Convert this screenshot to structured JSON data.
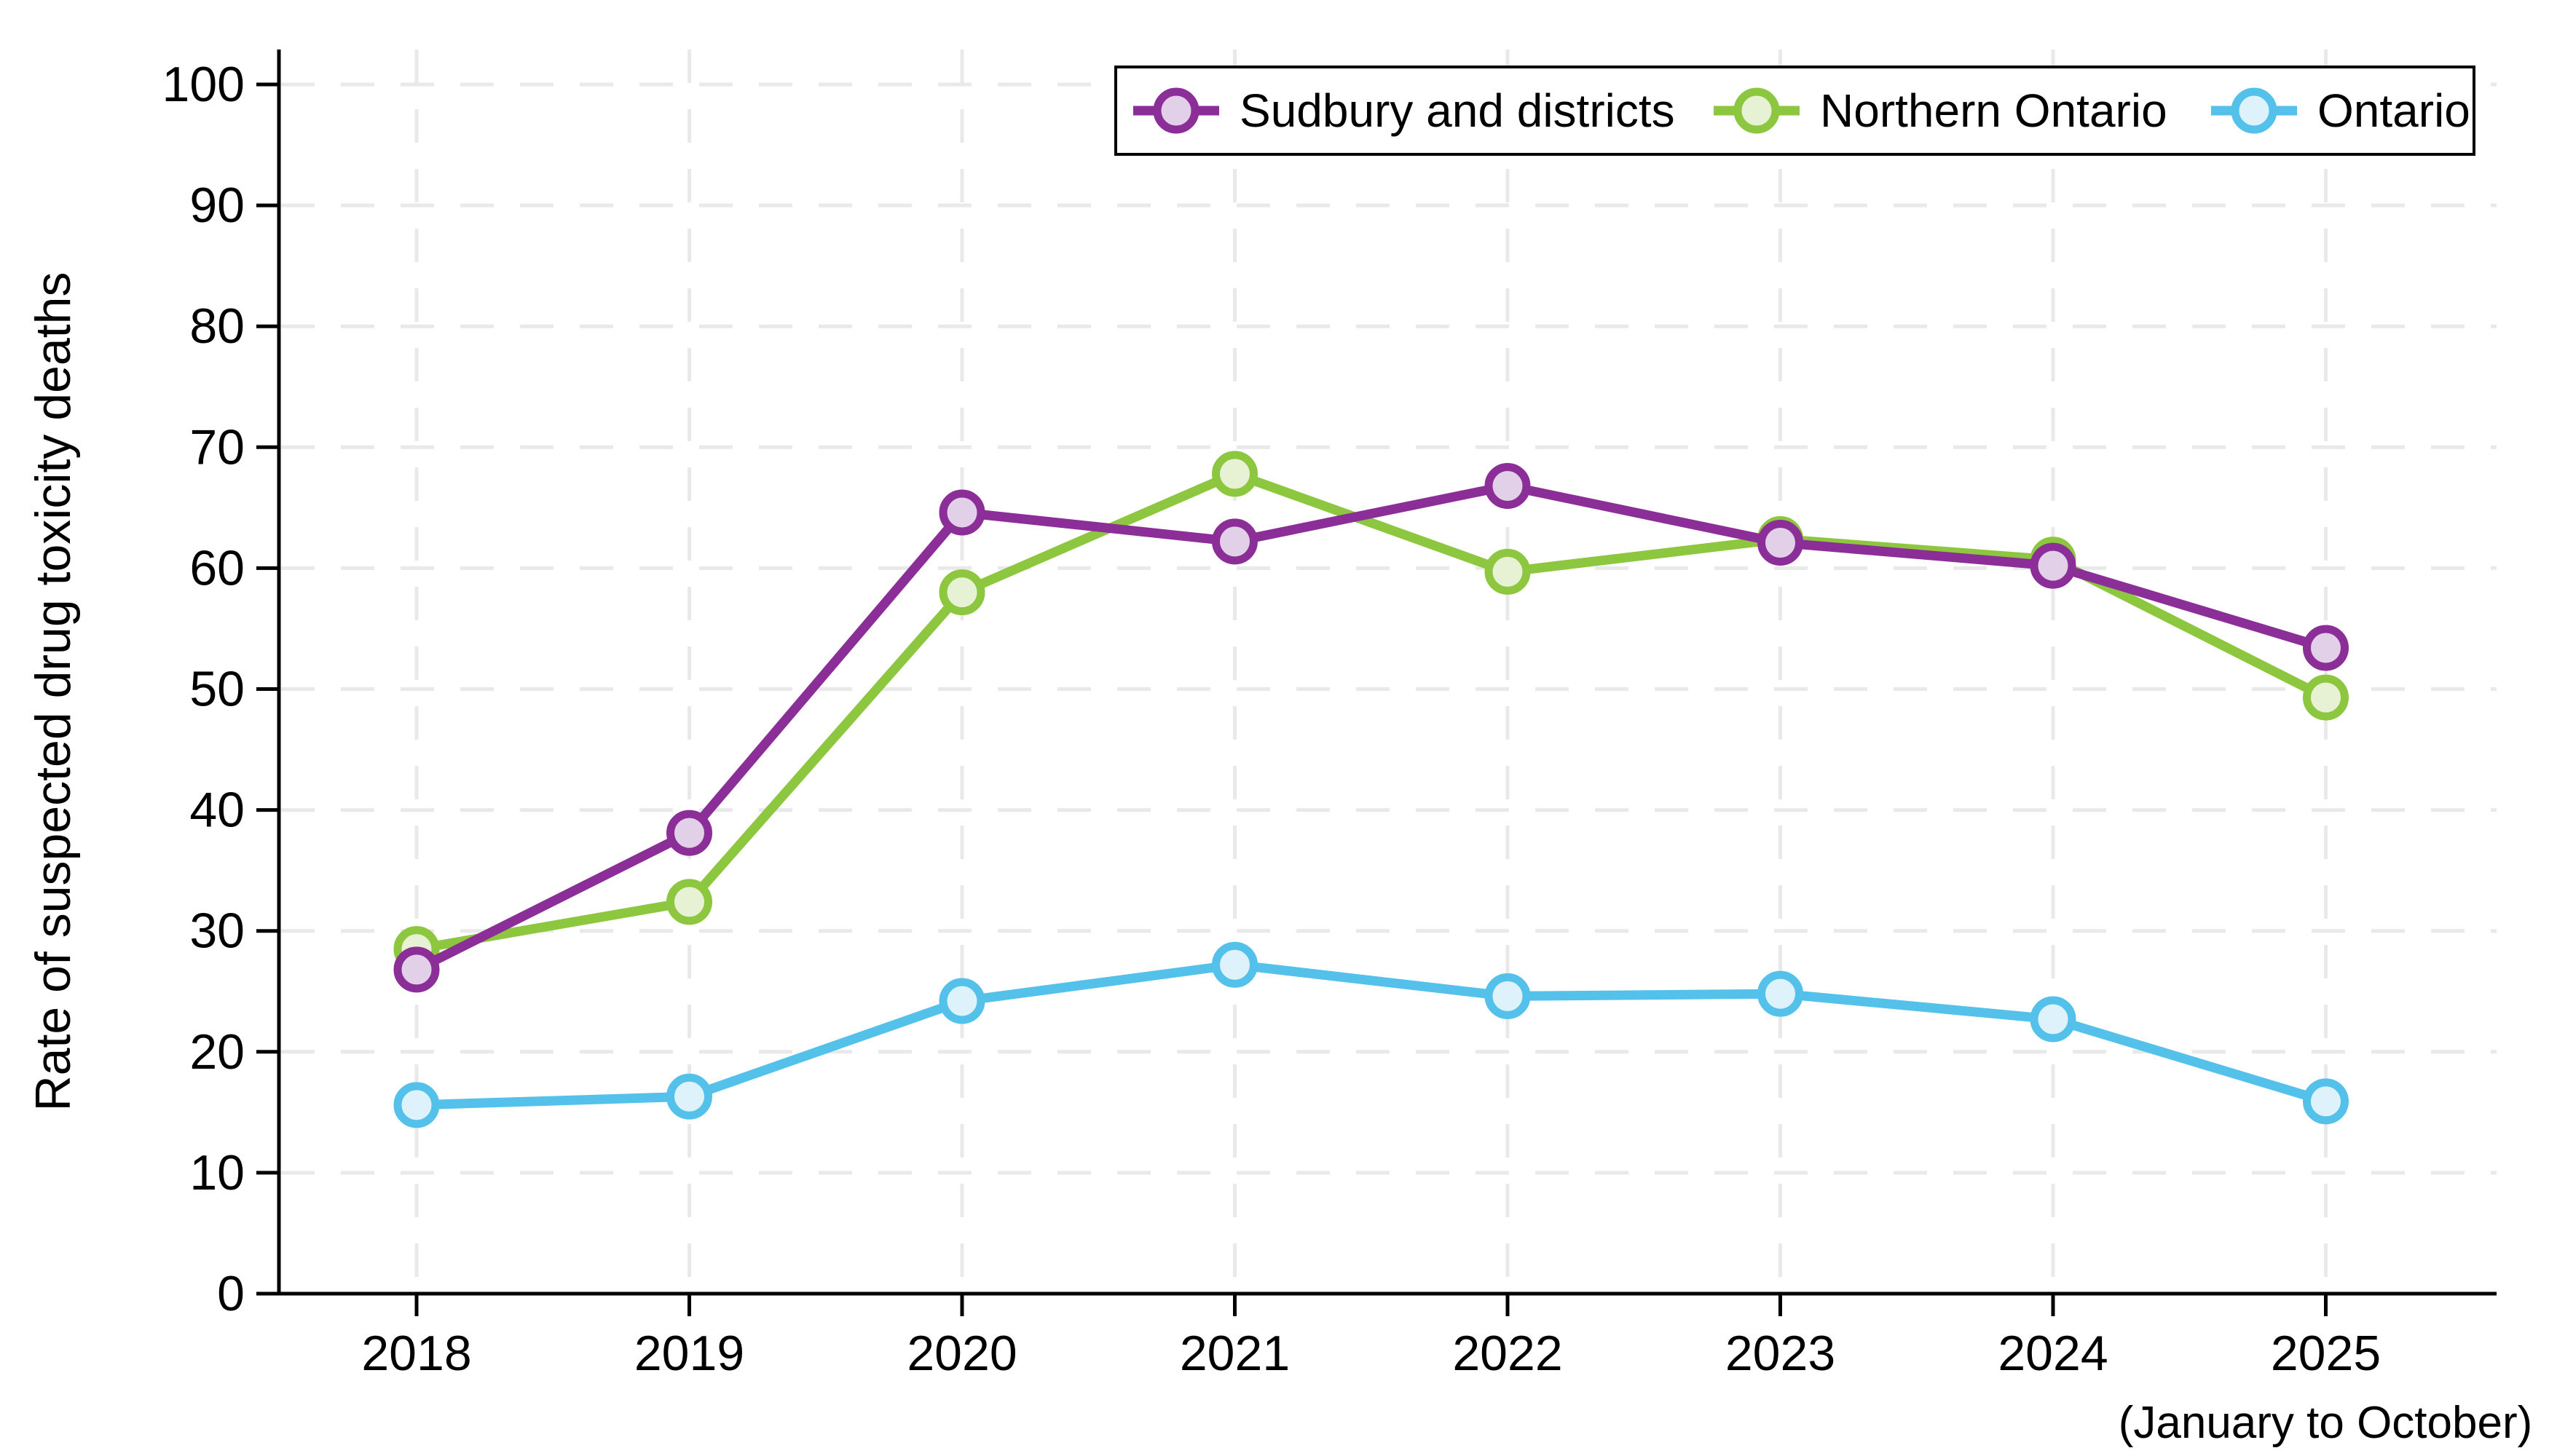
{
  "chart_data": {
    "type": "line",
    "title": "",
    "ylabel": "Rate of suspected drug toxicity deaths",
    "xlabel": "",
    "x_note": "(January to October)",
    "x": [
      2018,
      2019,
      2020,
      2021,
      2022,
      2023,
      2024,
      2025
    ],
    "y_ticks": [
      0,
      10,
      20,
      30,
      40,
      50,
      60,
      70,
      80,
      90,
      100
    ],
    "ylim": [
      0,
      100
    ],
    "grid": "dashed light-gray horizontal and vertical gridlines",
    "legend_position": "top-right inside plot, horizontal row, boxed",
    "series": [
      {
        "name": "Sudbury and districts",
        "color": "#8B2E97",
        "marker_fill": "#E2CFE8",
        "values": [
          26.8,
          38.1,
          64.6,
          62.2,
          66.8,
          62.1,
          60.2,
          53.4
        ]
      },
      {
        "name": "Northern Ontario",
        "color": "#8DC63F",
        "marker_fill": "#E7F1D3",
        "values": [
          28.5,
          32.4,
          58.0,
          67.8,
          59.7,
          62.4,
          60.7,
          49.3
        ]
      },
      {
        "name": "Ontario",
        "color": "#53C1EA",
        "marker_fill": "#DDF2FB",
        "values": [
          15.6,
          16.3,
          24.2,
          27.2,
          24.6,
          24.8,
          22.7,
          15.9
        ]
      }
    ]
  },
  "colors": {
    "background": "#FFFFFF",
    "axis": "#000000",
    "gridline": "#E9E9E9",
    "legend_border": "#000000",
    "legend_background": "#FFFFFF"
  }
}
